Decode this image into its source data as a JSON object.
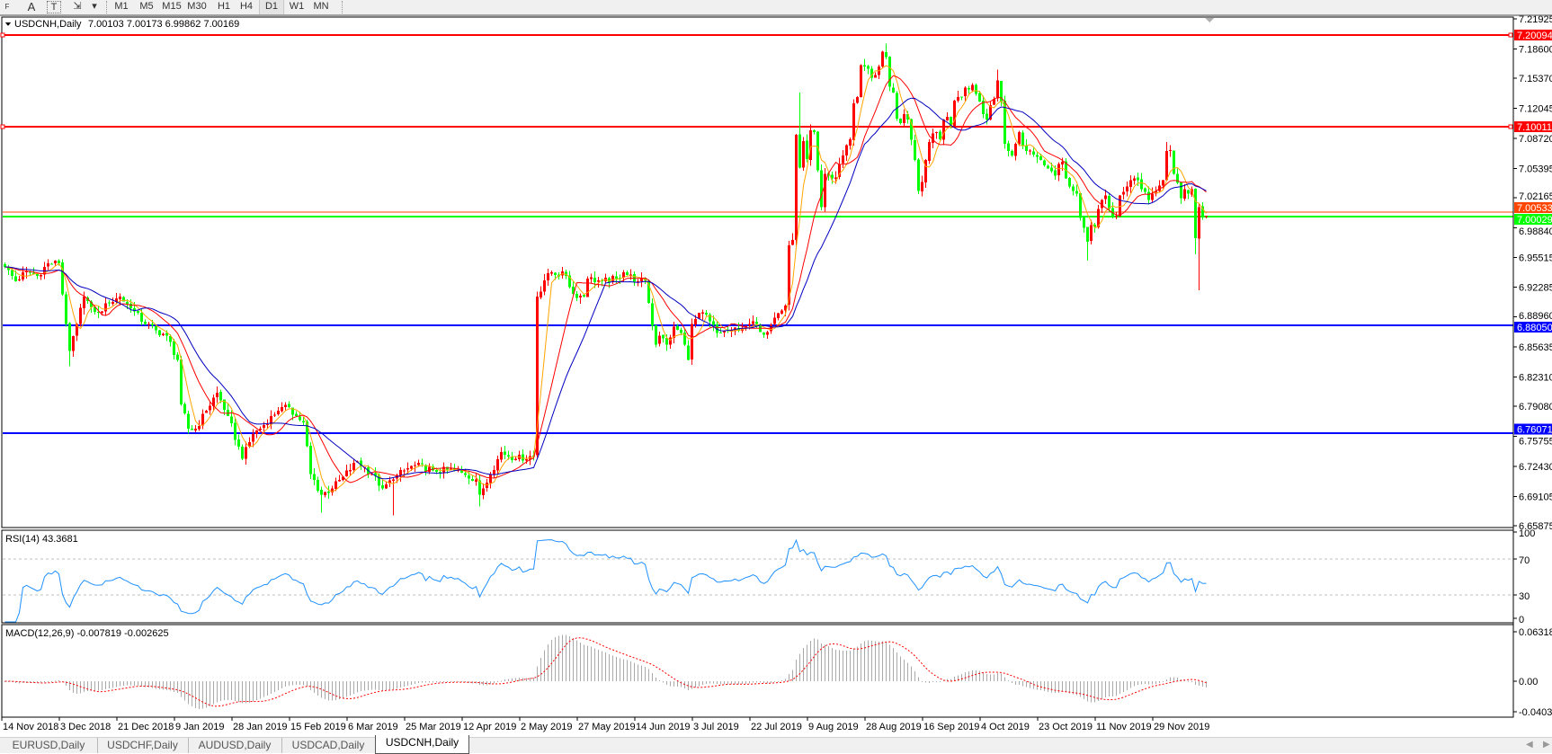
{
  "toolbar": {
    "tools": [
      {
        "icon": "fibonacci-fan-icon",
        "label": "F"
      },
      {
        "icon": "text-label-icon",
        "label": "A"
      },
      {
        "icon": "text-box-icon",
        "label": "T"
      },
      {
        "icon": "arrows-icon",
        "label": "⇲"
      },
      {
        "icon": "dropdown-icon",
        "label": "▾"
      }
    ],
    "timeframes": [
      "M1",
      "M5",
      "M15",
      "M30",
      "H1",
      "H4",
      "D1",
      "W1",
      "MN"
    ],
    "active_timeframe": "D1"
  },
  "chart": {
    "title": "USDCNH,Daily",
    "ohlc": "7.00103 7.00173 6.99862 7.00169",
    "collapse_icon": "▼",
    "price_ticks": [
      "7.21925",
      "7.18600",
      "7.15370",
      "7.12045",
      "7.08720",
      "7.05395",
      "7.02165",
      "6.98840",
      "6.95515",
      "6.92285",
      "6.88960",
      "6.85635",
      "6.82310",
      "6.79080",
      "6.75755",
      "6.72430",
      "6.69105",
      "6.65875"
    ],
    "levels": [
      {
        "price": "7.20094",
        "color": "#ff0000",
        "kind": "horizontal-line"
      },
      {
        "price": "7.10011",
        "color": "#ff0000",
        "kind": "horizontal-line"
      },
      {
        "price": "6.88050",
        "color": "#0000ff",
        "kind": "horizontal-line"
      },
      {
        "price": "6.76071",
        "color": "#0000ff",
        "kind": "horizontal-line"
      },
      {
        "price": "7.00533",
        "color": "#ff4500",
        "kind": "ask-line"
      },
      {
        "price": "7.00029",
        "color": "#00ff00",
        "kind": "bid-line"
      }
    ],
    "ma_colors": [
      "#ffa500",
      "#ff0000",
      "#0000c0"
    ],
    "candle_colors": {
      "up": "#ff0000",
      "down": "#00ff00"
    }
  },
  "chart_data": {
    "type": "candlestick",
    "price_range": [
      6.65875,
      7.21925
    ],
    "last_bar": {
      "open": 7.00103,
      "high": 7.00173,
      "low": 6.99862,
      "close": 7.00169
    },
    "close_path": [
      [
        0,
        6.945
      ],
      [
        3,
        6.929
      ],
      [
        6,
        6.94
      ],
      [
        9,
        6.935
      ],
      [
        12,
        6.949
      ],
      [
        15,
        6.949
      ],
      [
        17,
        6.882
      ],
      [
        18,
        6.852
      ],
      [
        20,
        6.882
      ],
      [
        22,
        6.912
      ],
      [
        24,
        6.9
      ],
      [
        26,
        6.895
      ],
      [
        29,
        6.905
      ],
      [
        32,
        6.912
      ],
      [
        35,
        6.899
      ],
      [
        39,
        6.882
      ],
      [
        42,
        6.875
      ],
      [
        45,
        6.869
      ],
      [
        48,
        6.842
      ],
      [
        49,
        6.793
      ],
      [
        51,
        6.766
      ],
      [
        53,
        6.766
      ],
      [
        56,
        6.786
      ],
      [
        59,
        6.806
      ],
      [
        62,
        6.78
      ],
      [
        66,
        6.733
      ],
      [
        69,
        6.76
      ],
      [
        72,
        6.77
      ],
      [
        74,
        6.78
      ],
      [
        76,
        6.786
      ],
      [
        79,
        6.79
      ],
      [
        81,
        6.78
      ],
      [
        83,
        6.773
      ],
      [
        85,
        6.716
      ],
      [
        88,
        6.693
      ],
      [
        91,
        6.7
      ],
      [
        94,
        6.713
      ],
      [
        98,
        6.73
      ],
      [
        102,
        6.716
      ],
      [
        105,
        6.7
      ],
      [
        108,
        6.71
      ],
      [
        111,
        6.72
      ],
      [
        114,
        6.726
      ],
      [
        119,
        6.72
      ],
      [
        125,
        6.72
      ],
      [
        128,
        6.715
      ],
      [
        131,
        6.71
      ],
      [
        132,
        6.693
      ],
      [
        135,
        6.716
      ],
      [
        138,
        6.74
      ],
      [
        142,
        6.733
      ],
      [
        147,
        6.736
      ],
      [
        148,
        6.912
      ],
      [
        150,
        6.93
      ],
      [
        152,
        6.939
      ],
      [
        156,
        6.935
      ],
      [
        158,
        6.915
      ],
      [
        161,
        6.912
      ],
      [
        162,
        6.932
      ],
      [
        166,
        6.929
      ],
      [
        170,
        6.932
      ],
      [
        172,
        6.939
      ],
      [
        176,
        6.929
      ],
      [
        178,
        6.93
      ],
      [
        179,
        6.905
      ],
      [
        181,
        6.859
      ],
      [
        182,
        6.869
      ],
      [
        184,
        6.859
      ],
      [
        186,
        6.879
      ],
      [
        188,
        6.872
      ],
      [
        190,
        6.842
      ],
      [
        191,
        6.882
      ],
      [
        194,
        6.895
      ],
      [
        196,
        6.885
      ],
      [
        198,
        6.872
      ],
      [
        202,
        6.875
      ],
      [
        206,
        6.88
      ],
      [
        209,
        6.882
      ],
      [
        211,
        6.87
      ],
      [
        214,
        6.889
      ],
      [
        217,
        6.902
      ],
      [
        218,
        6.969
      ],
      [
        219,
        6.975
      ],
      [
        220,
        7.091
      ],
      [
        221,
        7.055
      ],
      [
        222,
        7.084
      ],
      [
        223,
        7.064
      ],
      [
        224,
        7.096
      ],
      [
        225,
        7.094
      ],
      [
        227,
        7.011
      ],
      [
        228,
        7.048
      ],
      [
        229,
        7.046
      ],
      [
        231,
        7.044
      ],
      [
        232,
        7.059
      ],
      [
        233,
        7.068
      ],
      [
        235,
        7.086
      ],
      [
        236,
        7.126
      ],
      [
        237,
        7.133
      ],
      [
        238,
        7.168
      ],
      [
        240,
        7.164
      ],
      [
        241,
        7.154
      ],
      [
        242,
        7.157
      ],
      [
        244,
        7.183
      ],
      [
        245,
        7.177
      ],
      [
        246,
        7.144
      ],
      [
        247,
        7.138
      ],
      [
        248,
        7.109
      ],
      [
        249,
        7.104
      ],
      [
        250,
        7.114
      ],
      [
        251,
        7.108
      ],
      [
        253,
        7.063
      ],
      [
        254,
        7.029
      ],
      [
        255,
        7.039
      ],
      [
        256,
        7.063
      ],
      [
        257,
        7.083
      ],
      [
        259,
        7.094
      ],
      [
        260,
        7.086
      ],
      [
        261,
        7.108
      ],
      [
        262,
        7.111
      ],
      [
        263,
        7.101
      ],
      [
        264,
        7.129
      ],
      [
        266,
        7.133
      ],
      [
        267,
        7.143
      ],
      [
        268,
        7.141
      ],
      [
        269,
        7.146
      ],
      [
        271,
        7.128
      ],
      [
        272,
        7.114
      ],
      [
        273,
        7.108
      ],
      [
        274,
        7.124
      ],
      [
        275,
        7.131
      ],
      [
        276,
        7.151
      ],
      [
        277,
        7.128
      ],
      [
        278,
        7.081
      ],
      [
        279,
        7.073
      ],
      [
        280,
        7.068
      ],
      [
        281,
        7.081
      ],
      [
        282,
        7.094
      ],
      [
        283,
        7.079
      ],
      [
        284,
        7.073
      ],
      [
        286,
        7.069
      ],
      [
        288,
        7.063
      ],
      [
        290,
        7.054
      ],
      [
        291,
        7.051
      ],
      [
        292,
        7.046
      ],
      [
        293,
        7.059
      ],
      [
        294,
        7.061
      ],
      [
        295,
        7.043
      ],
      [
        296,
        7.034
      ],
      [
        297,
        7.029
      ],
      [
        298,
        7.026
      ],
      [
        299,
        6.999
      ],
      [
        300,
        6.988
      ],
      [
        301,
        6.973
      ],
      [
        302,
        6.991
      ],
      [
        303,
        6.989
      ],
      [
        304,
        7.009
      ],
      [
        306,
        7.024
      ],
      [
        308,
        7.001
      ],
      [
        309,
        7.001
      ],
      [
        310,
        7.024
      ],
      [
        311,
        7.028
      ],
      [
        312,
        7.034
      ],
      [
        313,
        7.041
      ],
      [
        314,
        7.043
      ],
      [
        315,
        7.041
      ],
      [
        316,
        7.031
      ],
      [
        317,
        7.028
      ],
      [
        318,
        7.019
      ],
      [
        319,
        7.026
      ],
      [
        320,
        7.029
      ],
      [
        322,
        7.041
      ],
      [
        323,
        7.073
      ],
      [
        324,
        7.074
      ],
      [
        325,
        7.048
      ],
      [
        326,
        7.038
      ],
      [
        327,
        7.021
      ],
      [
        328,
        7.031
      ],
      [
        329,
        7.026
      ],
      [
        330,
        7.031
      ],
      [
        331,
        6.977
      ],
      [
        332,
        7.011
      ],
      [
        333,
        7.001
      ],
      [
        334,
        7.00169
      ]
    ],
    "wick_extremes": [
      {
        "bar": 18,
        "low": 6.835
      },
      {
        "bar": 88,
        "low": 6.673
      },
      {
        "bar": 108,
        "low": 6.67
      },
      {
        "bar": 132,
        "low": 6.68
      },
      {
        "bar": 221,
        "high": 7.138
      },
      {
        "bar": 245,
        "high": 7.192
      },
      {
        "bar": 276,
        "high": 7.163
      },
      {
        "bar": 301,
        "low": 6.952
      },
      {
        "bar": 323,
        "high": 7.083
      },
      {
        "bar": 331,
        "low": 6.959
      },
      {
        "bar": 332,
        "low": 6.919
      }
    ]
  },
  "rsi": {
    "label": "RSI(14) 43.3681",
    "ticks": [
      "100",
      "70",
      "30",
      "0"
    ],
    "line_color": "#1e90ff"
  },
  "macd": {
    "label": "MACD(12,26,9) -0.007819 -0.002625",
    "ticks": [
      "0.063184",
      "0.00",
      "-0.040355"
    ],
    "hist_color": "#a9a9a9",
    "signal_color": "#ff0000"
  },
  "dates": [
    "14 Nov 2018",
    "3 Dec 2018",
    "21 Dec 2018",
    "9 Jan 2019",
    "28 Jan 2019",
    "15 Feb 2019",
    "6 Mar 2019",
    "25 Mar 2019",
    "12 Apr 2019",
    "2 May 2019",
    "27 May 2019",
    "14 Jun 2019",
    "3 Jul 2019",
    "22 Jul 2019",
    "9 Aug 2019",
    "28 Aug 2019",
    "16 Sep 2019",
    "4 Oct 2019",
    "23 Oct 2019",
    "11 Nov 2019",
    "29 Nov 2019"
  ],
  "tabs": [
    {
      "label": "EURUSD,Daily",
      "active": false
    },
    {
      "label": "USDCHF,Daily",
      "active": false
    },
    {
      "label": "AUDUSD,Daily",
      "active": false
    },
    {
      "label": "USDCAD,Daily",
      "active": false
    },
    {
      "label": "USDCNH,Daily",
      "active": true
    }
  ],
  "scroll": {
    "left": "◀",
    "right": "▶"
  }
}
